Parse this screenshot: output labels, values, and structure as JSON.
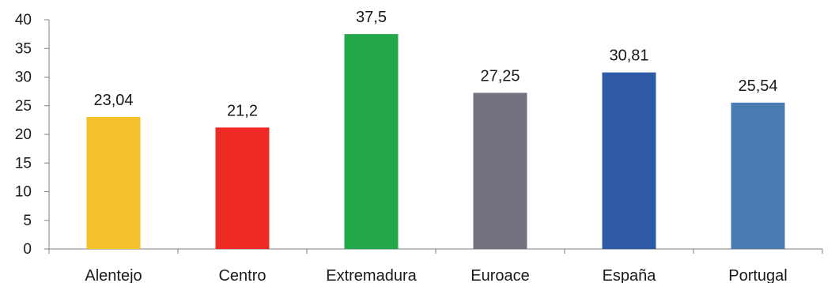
{
  "chart_data": {
    "type": "bar",
    "title": "",
    "title_color": "#e02020",
    "xlabel": "",
    "ylabel": "",
    "categories": [
      "Alentejo",
      "Centro",
      "Extremadura",
      "Euroace",
      "España",
      "Portugal"
    ],
    "values": [
      23.04,
      21.2,
      37.5,
      27.25,
      30.81,
      25.54
    ],
    "data_labels": [
      "23,04",
      "21,2",
      "37,5",
      "27,25",
      "30,81",
      "25,54"
    ],
    "colors": [
      "#f4c12a",
      "#ee2a24",
      "#23a84a",
      "#72717e",
      "#2f5aa8",
      "#4a7cb4"
    ],
    "ylim": [
      0,
      40
    ],
    "yticks": [
      0,
      5,
      10,
      15,
      20,
      25,
      30,
      35,
      40
    ],
    "grid": false,
    "legend": "none"
  }
}
